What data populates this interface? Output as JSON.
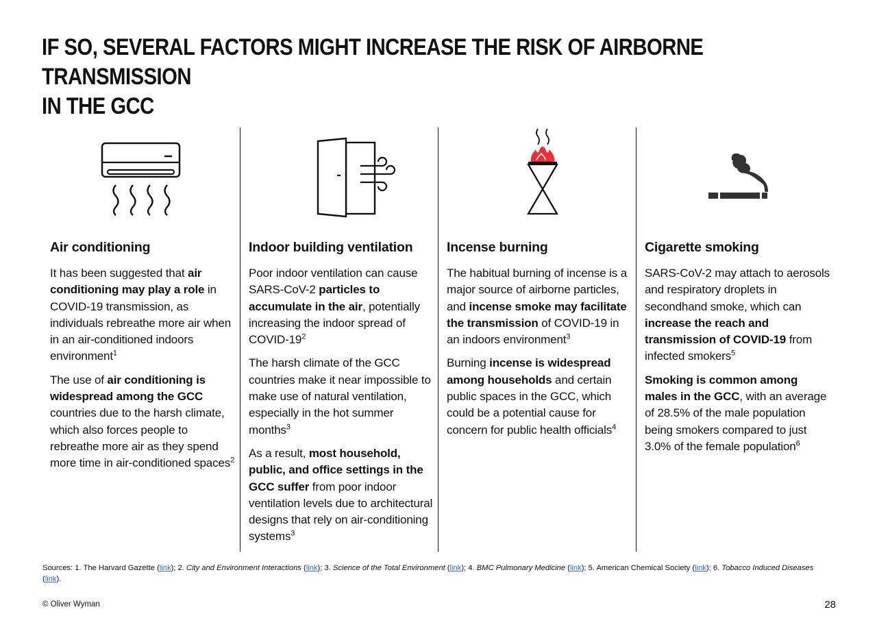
{
  "title": {
    "line1": "IF SO, SEVERAL FACTORS MIGHT INCREASE THE RISK OF AIRBORNE TRANSMISSION",
    "line2": "IN THE GCC"
  },
  "columns": [
    {
      "icon": "air-conditioner-icon",
      "heading": "Air conditioning",
      "paragraphs": [
        [
          {
            "t": "It has been suggested that "
          },
          {
            "t": "air conditioning may play a role",
            "b": true
          },
          {
            "t": " in COVID-19 transmission, as individuals rebreathe more air when in an air-conditioned indoors environment"
          },
          {
            "t": "1",
            "sup": true
          }
        ],
        [
          {
            "t": "The use of "
          },
          {
            "t": "air conditioning is widespread among the GCC",
            "b": true
          },
          {
            "t": " countries due to the harsh climate, which also forces people to rebreathe more air as they spend more time in air-conditioned spaces"
          },
          {
            "t": "2",
            "sup": true
          }
        ]
      ]
    },
    {
      "icon": "door-wind-icon",
      "heading": "Indoor building ventilation",
      "paragraphs": [
        [
          {
            "t": "Poor indoor ventilation can cause SARS-CoV-2 "
          },
          {
            "t": "particles to accumulate in the air",
            "b": true
          },
          {
            "t": ", potentially increasing the indoor spread of COVID-19"
          },
          {
            "t": "2",
            "sup": true
          }
        ],
        [
          {
            "t": "The harsh climate of the GCC countries make it near impossible to make use of natural ventilation, especially in the hot summer months"
          },
          {
            "t": "3",
            "sup": true
          }
        ],
        [
          {
            "t": "As a result, "
          },
          {
            "t": "most household, public, and office settings in the GCC suffer",
            "b": true
          },
          {
            "t": " from poor indoor ventilation levels due to architectural designs that rely on air-conditioning systems"
          },
          {
            "t": "3",
            "sup": true
          }
        ]
      ]
    },
    {
      "icon": "incense-burner-icon",
      "heading": "Incense burning",
      "paragraphs": [
        [
          {
            "t": "The habitual burning of incense is a major source of airborne particles, and "
          },
          {
            "t": "incense smoke may facilitate the transmission",
            "b": true
          },
          {
            "t": " of COVID-19 in an indoors environment"
          },
          {
            "t": "3",
            "sup": true
          }
        ],
        [
          {
            "t": "Burning "
          },
          {
            "t": "incense is widespread among households",
            "b": true
          },
          {
            "t": " and certain public spaces in the GCC, which could be a potential cause for concern for public health officials"
          },
          {
            "t": "4",
            "sup": true
          }
        ]
      ]
    },
    {
      "icon": "cigarette-icon",
      "heading": "Cigarette smoking",
      "paragraphs": [
        [
          {
            "t": "SARS-CoV-2 may attach to aerosols and respiratory droplets in secondhand smoke, which can "
          },
          {
            "t": "increase the reach and transmission of COVID-19",
            "b": true
          },
          {
            "t": " from infected smokers"
          },
          {
            "t": "5",
            "sup": true
          }
        ],
        [
          {
            "t": "Smoking is common among males in the GCC",
            "b": true
          },
          {
            "t": ", with an average of 28.5% of the male population being smokers compared to just 3.0% of the female population"
          },
          {
            "t": "6",
            "sup": true
          }
        ]
      ]
    }
  ],
  "sources": [
    {
      "t": "Sources: 1. The Harvard Gazette ("
    },
    {
      "t": "link",
      "link": true
    },
    {
      "t": "); 2. "
    },
    {
      "t": "City and Environment Interactions",
      "i": true
    },
    {
      "t": " ("
    },
    {
      "t": "link",
      "link": true
    },
    {
      "t": "); 3. "
    },
    {
      "t": "Science of the Total Environment",
      "i": true
    },
    {
      "t": " ("
    },
    {
      "t": "link",
      "link": true
    },
    {
      "t": "); 4. "
    },
    {
      "t": "BMC Pulmonary Medicine",
      "i": true
    },
    {
      "t": " ("
    },
    {
      "t": "link",
      "link": true
    },
    {
      "t": "); 5. American Chemical Society ("
    },
    {
      "t": "link",
      "link": true
    },
    {
      "t": "); 6. "
    },
    {
      "t": "Tobacco Induced Diseases",
      "i": true
    },
    {
      "t": " ("
    },
    {
      "t": "link",
      "link": true
    },
    {
      "t": ")."
    }
  ],
  "footer": {
    "copyright": "© Oliver Wyman",
    "page_number": "28"
  },
  "colors": {
    "text": "#111111",
    "flame": "#e8303a",
    "link": "#2f6fd6",
    "smoke": "#333333"
  }
}
